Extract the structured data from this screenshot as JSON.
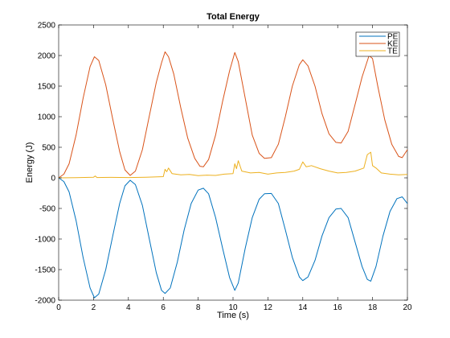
{
  "chart_data": {
    "type": "line",
    "title": "Total Energy",
    "xlabel": "Time (s)",
    "ylabel": "Energy (J)",
    "xlim": [
      0,
      20
    ],
    "ylim": [
      -2000,
      2500
    ],
    "xticks": [
      0,
      2,
      4,
      6,
      8,
      10,
      12,
      14,
      16,
      18,
      20
    ],
    "yticks": [
      -2000,
      -1500,
      -1000,
      -500,
      0,
      500,
      1000,
      1500,
      2000,
      2500
    ],
    "grid": false,
    "legend_position": "top-right",
    "series": [
      {
        "name": "PE",
        "color": "#0072BD",
        "points": [
          [
            0,
            0
          ],
          [
            0.3,
            -60
          ],
          [
            0.6,
            -230
          ],
          [
            1.0,
            -700
          ],
          [
            1.4,
            -1300
          ],
          [
            1.8,
            -1800
          ],
          [
            2.05,
            -1960
          ],
          [
            2.3,
            -1900
          ],
          [
            2.7,
            -1500
          ],
          [
            3.1,
            -950
          ],
          [
            3.5,
            -420
          ],
          [
            3.8,
            -130
          ],
          [
            4.1,
            -40
          ],
          [
            4.4,
            -110
          ],
          [
            4.8,
            -450
          ],
          [
            5.2,
            -1000
          ],
          [
            5.6,
            -1550
          ],
          [
            5.9,
            -1840
          ],
          [
            6.1,
            -1890
          ],
          [
            6.4,
            -1800
          ],
          [
            6.8,
            -1380
          ],
          [
            7.2,
            -850
          ],
          [
            7.6,
            -420
          ],
          [
            8.0,
            -200
          ],
          [
            8.3,
            -170
          ],
          [
            8.6,
            -260
          ],
          [
            9.0,
            -650
          ],
          [
            9.4,
            -1150
          ],
          [
            9.8,
            -1630
          ],
          [
            10.1,
            -1840
          ],
          [
            10.3,
            -1720
          ],
          [
            10.7,
            -1150
          ],
          [
            11.1,
            -650
          ],
          [
            11.5,
            -350
          ],
          [
            11.8,
            -260
          ],
          [
            12.2,
            -255
          ],
          [
            12.6,
            -420
          ],
          [
            13.0,
            -850
          ],
          [
            13.4,
            -1300
          ],
          [
            13.8,
            -1620
          ],
          [
            14.0,
            -1680
          ],
          [
            14.3,
            -1620
          ],
          [
            14.7,
            -1350
          ],
          [
            15.1,
            -950
          ],
          [
            15.5,
            -650
          ],
          [
            15.9,
            -510
          ],
          [
            16.2,
            -500
          ],
          [
            16.6,
            -650
          ],
          [
            17.0,
            -1050
          ],
          [
            17.4,
            -1450
          ],
          [
            17.7,
            -1660
          ],
          [
            17.9,
            -1690
          ],
          [
            18.2,
            -1450
          ],
          [
            18.6,
            -950
          ],
          [
            19.0,
            -550
          ],
          [
            19.4,
            -340
          ],
          [
            19.7,
            -310
          ],
          [
            20.0,
            -420
          ]
        ]
      },
      {
        "name": "KE",
        "color": "#D95319",
        "points": [
          [
            0,
            0
          ],
          [
            0.3,
            60
          ],
          [
            0.6,
            230
          ],
          [
            1.0,
            700
          ],
          [
            1.4,
            1300
          ],
          [
            1.8,
            1820
          ],
          [
            2.05,
            1980
          ],
          [
            2.3,
            1920
          ],
          [
            2.7,
            1520
          ],
          [
            3.1,
            960
          ],
          [
            3.5,
            430
          ],
          [
            3.8,
            130
          ],
          [
            4.1,
            40
          ],
          [
            4.4,
            110
          ],
          [
            4.8,
            460
          ],
          [
            5.2,
            1010
          ],
          [
            5.6,
            1560
          ],
          [
            5.9,
            1880
          ],
          [
            6.1,
            2060
          ],
          [
            6.3,
            1980
          ],
          [
            6.6,
            1700
          ],
          [
            7.0,
            1150
          ],
          [
            7.4,
            650
          ],
          [
            7.8,
            320
          ],
          [
            8.1,
            190
          ],
          [
            8.3,
            180
          ],
          [
            8.6,
            300
          ],
          [
            9.0,
            700
          ],
          [
            9.4,
            1250
          ],
          [
            9.8,
            1750
          ],
          [
            10.1,
            2050
          ],
          [
            10.3,
            1900
          ],
          [
            10.7,
            1300
          ],
          [
            11.1,
            700
          ],
          [
            11.5,
            400
          ],
          [
            11.8,
            320
          ],
          [
            12.2,
            330
          ],
          [
            12.6,
            550
          ],
          [
            13.0,
            1000
          ],
          [
            13.4,
            1500
          ],
          [
            13.8,
            1850
          ],
          [
            14.0,
            1930
          ],
          [
            14.3,
            1830
          ],
          [
            14.7,
            1500
          ],
          [
            15.1,
            1050
          ],
          [
            15.5,
            720
          ],
          [
            15.9,
            580
          ],
          [
            16.2,
            570
          ],
          [
            16.6,
            760
          ],
          [
            17.0,
            1200
          ],
          [
            17.4,
            1650
          ],
          [
            17.8,
            2000
          ],
          [
            18.0,
            1950
          ],
          [
            18.3,
            1500
          ],
          [
            18.7,
            950
          ],
          [
            19.1,
            550
          ],
          [
            19.5,
            350
          ],
          [
            19.7,
            330
          ],
          [
            20.0,
            460
          ]
        ]
      },
      {
        "name": "TE",
        "color": "#EDB120",
        "points": [
          [
            0,
            0
          ],
          [
            1.0,
            2
          ],
          [
            2.0,
            10
          ],
          [
            2.1,
            30
          ],
          [
            2.2,
            5
          ],
          [
            3.0,
            8
          ],
          [
            4.0,
            5
          ],
          [
            5.0,
            10
          ],
          [
            6.0,
            20
          ],
          [
            6.1,
            140
          ],
          [
            6.2,
            100
          ],
          [
            6.3,
            160
          ],
          [
            6.5,
            70
          ],
          [
            7.0,
            50
          ],
          [
            7.5,
            55
          ],
          [
            8.0,
            35
          ],
          [
            8.5,
            45
          ],
          [
            9.0,
            40
          ],
          [
            9.5,
            60
          ],
          [
            10.0,
            70
          ],
          [
            10.1,
            230
          ],
          [
            10.2,
            150
          ],
          [
            10.3,
            280
          ],
          [
            10.5,
            110
          ],
          [
            11.0,
            80
          ],
          [
            11.5,
            90
          ],
          [
            12.0,
            60
          ],
          [
            12.5,
            80
          ],
          [
            13.0,
            90
          ],
          [
            13.5,
            110
          ],
          [
            13.8,
            140
          ],
          [
            14.0,
            260
          ],
          [
            14.2,
            180
          ],
          [
            14.5,
            200
          ],
          [
            15.0,
            150
          ],
          [
            15.5,
            110
          ],
          [
            16.0,
            80
          ],
          [
            16.5,
            90
          ],
          [
            17.0,
            110
          ],
          [
            17.5,
            160
          ],
          [
            17.7,
            380
          ],
          [
            17.9,
            420
          ],
          [
            18.0,
            200
          ],
          [
            18.2,
            160
          ],
          [
            18.5,
            80
          ],
          [
            19.0,
            60
          ],
          [
            19.5,
            50
          ],
          [
            20.0,
            55
          ]
        ]
      }
    ]
  }
}
